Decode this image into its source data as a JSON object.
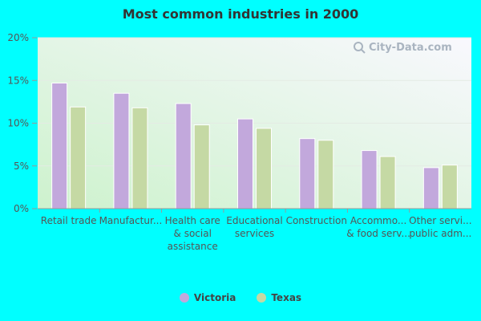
{
  "chart_data": {
    "type": "bar",
    "title": "Most common industries in 2000",
    "categories": [
      [
        "Retail trade"
      ],
      [
        "Manufactur..."
      ],
      [
        "Health care",
        "& social",
        "assistance"
      ],
      [
        "Educational",
        "services"
      ],
      [
        "Construction"
      ],
      [
        "Accommo...",
        "& food serv..."
      ],
      [
        "Other servi...",
        "public adm..."
      ]
    ],
    "series": [
      {
        "name": "Victoria",
        "color": "#c2a8dc",
        "values": [
          14.7,
          13.5,
          12.3,
          10.5,
          8.2,
          6.8,
          4.8
        ]
      },
      {
        "name": "Texas",
        "color": "#c5d9a4",
        "values": [
          11.9,
          11.8,
          9.8,
          9.4,
          8.0,
          6.1,
          5.1
        ]
      }
    ],
    "ylim": [
      0,
      20
    ],
    "yticks": [
      0,
      5,
      10,
      15,
      20
    ],
    "ytick_labels": [
      "0%",
      "5%",
      "10%",
      "15%",
      "20%"
    ],
    "xlabel": "",
    "ylabel": "",
    "legend_position": "bottom-center"
  },
  "watermark": {
    "text": "City-Data.com"
  }
}
